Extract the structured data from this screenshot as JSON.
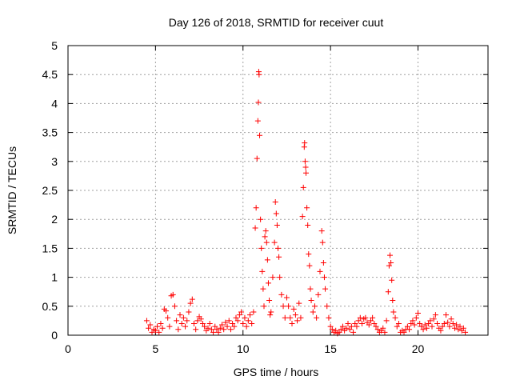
{
  "chart_data": {
    "type": "scatter",
    "title": "Day 126 of 2018, SRMTID for receiver cuut",
    "xlabel": "GPS time / hours",
    "ylabel": "SRMTID / TECUs",
    "xlim": [
      0,
      24
    ],
    "ylim": [
      0,
      5
    ],
    "xticks": [
      0,
      5,
      10,
      15,
      20
    ],
    "xtick_labels": [
      "0",
      "5",
      "10",
      "15",
      "20"
    ],
    "yticks": [
      0,
      0.5,
      1,
      1.5,
      2,
      2.5,
      3,
      3.5,
      4,
      4.5,
      5
    ],
    "ytick_labels": [
      "0",
      "0.5",
      "1",
      "1.5",
      "2",
      "2.5",
      "3",
      "3.5",
      "4",
      "4.5",
      "5"
    ],
    "grid": true,
    "marker": "+",
    "color": "#ff0000",
    "series": [
      {
        "name": "SRMTID",
        "points": [
          [
            4.5,
            0.25
          ],
          [
            4.6,
            0.12
          ],
          [
            4.7,
            0.18
          ],
          [
            4.8,
            0.05
          ],
          [
            4.9,
            0.1
          ],
          [
            5.0,
            0.08
          ],
          [
            5.1,
            0.15
          ],
          [
            5.2,
            0.05
          ],
          [
            5.3,
            0.2
          ],
          [
            5.4,
            0.12
          ],
          [
            5.5,
            0.45
          ],
          [
            5.6,
            0.42
          ],
          [
            5.7,
            0.3
          ],
          [
            5.8,
            0.15
          ],
          [
            5.9,
            0.68
          ],
          [
            6.0,
            0.7
          ],
          [
            6.1,
            0.5
          ],
          [
            6.2,
            0.25
          ],
          [
            6.3,
            0.1
          ],
          [
            6.4,
            0.35
          ],
          [
            6.5,
            0.2
          ],
          [
            6.6,
            0.3
          ],
          [
            6.7,
            0.15
          ],
          [
            6.8,
            0.25
          ],
          [
            6.9,
            0.4
          ],
          [
            7.0,
            0.55
          ],
          [
            7.1,
            0.62
          ],
          [
            7.2,
            0.2
          ],
          [
            7.3,
            0.1
          ],
          [
            7.4,
            0.25
          ],
          [
            7.5,
            0.32
          ],
          [
            7.6,
            0.28
          ],
          [
            7.7,
            0.2
          ],
          [
            7.8,
            0.15
          ],
          [
            7.9,
            0.08
          ],
          [
            8.0,
            0.12
          ],
          [
            8.1,
            0.2
          ],
          [
            8.2,
            0.1
          ],
          [
            8.3,
            0.05
          ],
          [
            8.4,
            0.15
          ],
          [
            8.5,
            0.1
          ],
          [
            8.6,
            0.05
          ],
          [
            8.7,
            0.12
          ],
          [
            8.8,
            0.18
          ],
          [
            8.9,
            0.1
          ],
          [
            9.0,
            0.22
          ],
          [
            9.1,
            0.15
          ],
          [
            9.2,
            0.25
          ],
          [
            9.3,
            0.1
          ],
          [
            9.4,
            0.2
          ],
          [
            9.5,
            0.15
          ],
          [
            9.6,
            0.3
          ],
          [
            9.7,
            0.25
          ],
          [
            9.8,
            0.35
          ],
          [
            9.9,
            0.4
          ],
          [
            10.0,
            0.2
          ],
          [
            10.1,
            0.3
          ],
          [
            10.2,
            0.15
          ],
          [
            10.3,
            0.25
          ],
          [
            10.4,
            0.35
          ],
          [
            10.5,
            0.2
          ],
          [
            10.6,
            0.4
          ],
          [
            10.7,
            1.85
          ],
          [
            10.75,
            2.2
          ],
          [
            10.8,
            3.05
          ],
          [
            10.85,
            3.7
          ],
          [
            10.88,
            4.02
          ],
          [
            10.9,
            4.55
          ],
          [
            10.92,
            4.5
          ],
          [
            10.95,
            3.45
          ],
          [
            11.0,
            2.0
          ],
          [
            11.05,
            1.5
          ],
          [
            11.1,
            1.1
          ],
          [
            11.15,
            0.8
          ],
          [
            11.2,
            0.5
          ],
          [
            11.25,
            1.7
          ],
          [
            11.3,
            1.8
          ],
          [
            11.35,
            1.6
          ],
          [
            11.4,
            1.3
          ],
          [
            11.45,
            0.9
          ],
          [
            11.5,
            0.6
          ],
          [
            11.55,
            0.35
          ],
          [
            11.6,
            0.4
          ],
          [
            11.7,
            1.0
          ],
          [
            11.8,
            1.6
          ],
          [
            11.85,
            2.3
          ],
          [
            11.9,
            2.1
          ],
          [
            11.95,
            1.9
          ],
          [
            12.0,
            1.5
          ],
          [
            12.05,
            1.35
          ],
          [
            12.1,
            1.0
          ],
          [
            12.2,
            0.7
          ],
          [
            12.3,
            0.5
          ],
          [
            12.4,
            0.3
          ],
          [
            12.5,
            0.65
          ],
          [
            12.6,
            0.5
          ],
          [
            12.7,
            0.3
          ],
          [
            12.8,
            0.2
          ],
          [
            12.9,
            0.45
          ],
          [
            13.0,
            0.35
          ],
          [
            13.1,
            0.25
          ],
          [
            13.2,
            0.55
          ],
          [
            13.3,
            0.3
          ],
          [
            13.4,
            2.05
          ],
          [
            13.45,
            2.55
          ],
          [
            13.5,
            3.25
          ],
          [
            13.52,
            3.32
          ],
          [
            13.55,
            3.0
          ],
          [
            13.58,
            2.9
          ],
          [
            13.6,
            2.8
          ],
          [
            13.65,
            2.2
          ],
          [
            13.7,
            1.9
          ],
          [
            13.75,
            1.4
          ],
          [
            13.8,
            1.2
          ],
          [
            13.85,
            0.8
          ],
          [
            13.9,
            0.6
          ],
          [
            14.0,
            0.4
          ],
          [
            14.1,
            0.5
          ],
          [
            14.2,
            0.3
          ],
          [
            14.3,
            0.7
          ],
          [
            14.4,
            1.1
          ],
          [
            14.5,
            1.8
          ],
          [
            14.55,
            1.6
          ],
          [
            14.6,
            1.25
          ],
          [
            14.65,
            1.0
          ],
          [
            14.7,
            0.8
          ],
          [
            14.8,
            0.5
          ],
          [
            14.9,
            0.3
          ],
          [
            15.0,
            0.15
          ],
          [
            15.1,
            0.1
          ],
          [
            15.2,
            0.05
          ],
          [
            15.3,
            0.08
          ],
          [
            15.4,
            0.03
          ],
          [
            15.5,
            0.05
          ],
          [
            15.6,
            0.1
          ],
          [
            15.7,
            0.15
          ],
          [
            15.8,
            0.08
          ],
          [
            15.9,
            0.12
          ],
          [
            16.0,
            0.2
          ],
          [
            16.1,
            0.1
          ],
          [
            16.2,
            0.15
          ],
          [
            16.3,
            0.05
          ],
          [
            16.4,
            0.2
          ],
          [
            16.5,
            0.15
          ],
          [
            16.6,
            0.25
          ],
          [
            16.7,
            0.3
          ],
          [
            16.8,
            0.2
          ],
          [
            16.9,
            0.28
          ],
          [
            17.0,
            0.3
          ],
          [
            17.1,
            0.22
          ],
          [
            17.2,
            0.18
          ],
          [
            17.3,
            0.25
          ],
          [
            17.4,
            0.3
          ],
          [
            17.5,
            0.2
          ],
          [
            17.6,
            0.15
          ],
          [
            17.7,
            0.1
          ],
          [
            17.8,
            0.05
          ],
          [
            17.9,
            0.08
          ],
          [
            18.0,
            0.12
          ],
          [
            18.1,
            0.05
          ],
          [
            18.2,
            0.25
          ],
          [
            18.3,
            0.75
          ],
          [
            18.35,
            1.2
          ],
          [
            18.4,
            1.38
          ],
          [
            18.45,
            1.25
          ],
          [
            18.5,
            0.95
          ],
          [
            18.55,
            0.6
          ],
          [
            18.6,
            0.4
          ],
          [
            18.7,
            0.3
          ],
          [
            18.8,
            0.15
          ],
          [
            18.9,
            0.2
          ],
          [
            19.0,
            0.05
          ],
          [
            19.1,
            0.08
          ],
          [
            19.2,
            0.05
          ],
          [
            19.3,
            0.1
          ],
          [
            19.4,
            0.15
          ],
          [
            19.5,
            0.1
          ],
          [
            19.6,
            0.2
          ],
          [
            19.7,
            0.25
          ],
          [
            19.8,
            0.18
          ],
          [
            19.9,
            0.3
          ],
          [
            20.0,
            0.38
          ],
          [
            20.1,
            0.2
          ],
          [
            20.2,
            0.15
          ],
          [
            20.3,
            0.1
          ],
          [
            20.4,
            0.18
          ],
          [
            20.5,
            0.12
          ],
          [
            20.6,
            0.2
          ],
          [
            20.7,
            0.25
          ],
          [
            20.8,
            0.15
          ],
          [
            20.9,
            0.28
          ],
          [
            21.0,
            0.35
          ],
          [
            21.1,
            0.2
          ],
          [
            21.2,
            0.12
          ],
          [
            21.3,
            0.08
          ],
          [
            21.4,
            0.15
          ],
          [
            21.5,
            0.2
          ],
          [
            21.6,
            0.35
          ],
          [
            21.7,
            0.22
          ],
          [
            21.8,
            0.15
          ],
          [
            21.9,
            0.28
          ],
          [
            22.0,
            0.2
          ],
          [
            22.1,
            0.12
          ],
          [
            22.2,
            0.18
          ],
          [
            22.3,
            0.1
          ],
          [
            22.4,
            0.15
          ],
          [
            22.5,
            0.08
          ],
          [
            22.6,
            0.12
          ],
          [
            22.7,
            0.05
          ]
        ]
      }
    ]
  }
}
